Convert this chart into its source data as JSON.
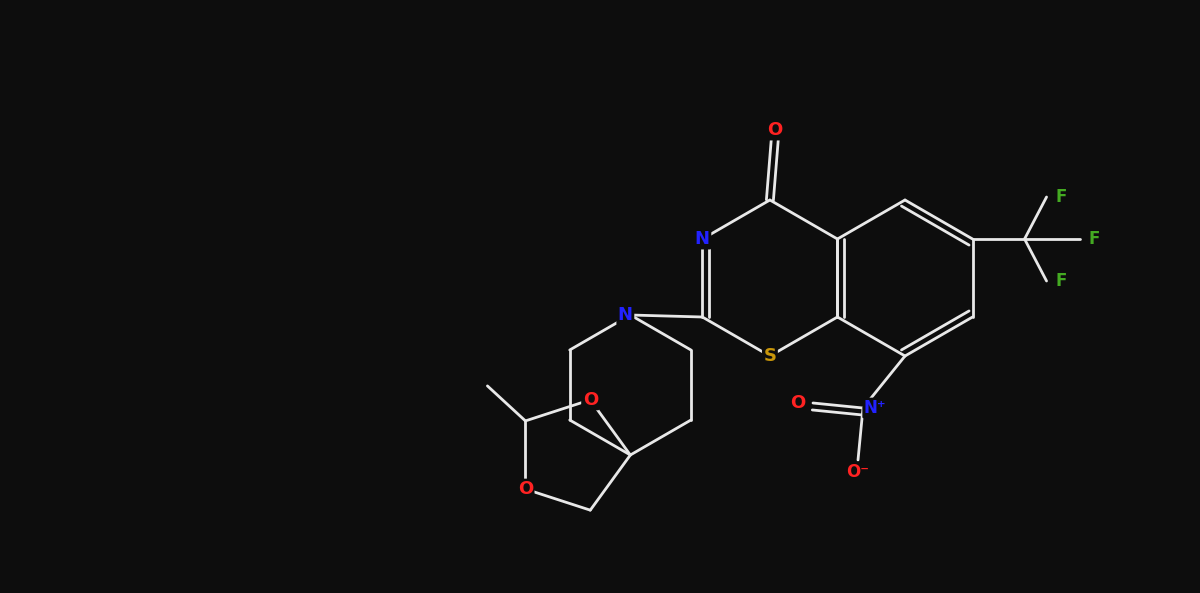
{
  "bg_color": "#0d0d0d",
  "bond_color": "#e8e8e8",
  "atom_colors": {
    "O": "#ff2222",
    "N": "#2222ff",
    "S": "#c8960a",
    "F": "#44aa22",
    "C": "#e8e8e8"
  },
  "figsize": [
    12.0,
    5.93
  ],
  "dpi": 100,
  "lw": 2.0,
  "fontsize": 13
}
